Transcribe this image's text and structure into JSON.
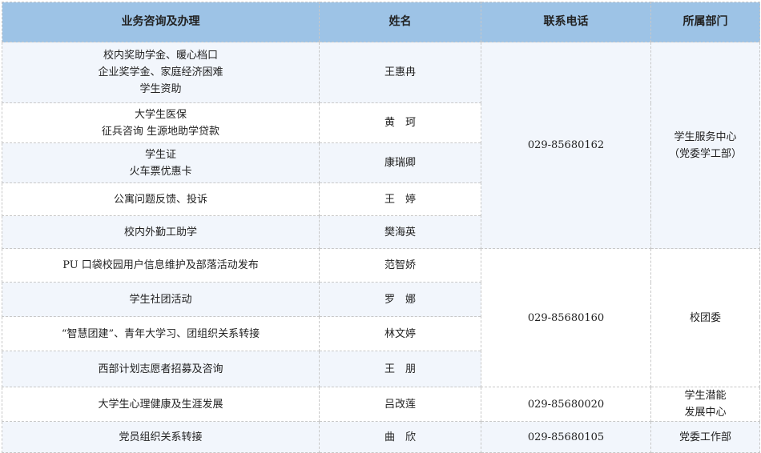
{
  "headers": [
    "业务咨询及办理",
    "姓名",
    "联系电话",
    "所属部门"
  ],
  "rows": [
    {
      "business": [
        "校内奖助学金、暖心档口",
        "企业奖学金、家庭经济困难",
        "学生资助"
      ],
      "name": "王惠冉"
    },
    {
      "business": [
        "大学生医保",
        "征兵咨询 生源地助学贷款"
      ],
      "name": "黄　珂"
    },
    {
      "business": [
        "学生证",
        "火车票优惠卡"
      ],
      "name": "康瑞卿"
    },
    {
      "business": [
        "公寓问题反馈、投诉"
      ],
      "name": "王　婷"
    },
    {
      "business": [
        "校内外勤工助学"
      ],
      "name": "樊海英"
    },
    {
      "business": [
        "PU 口袋校园用户信息维护及部落活动发布"
      ],
      "name": "范智娇"
    },
    {
      "business": [
        "学生社团活动"
      ],
      "name": "罗　娜"
    },
    {
      "business": [
        "“智慧团建”、青年大学习、团组织关系转接"
      ],
      "name": "林文婷"
    },
    {
      "business": [
        "西部计划志愿者招募及咨询"
      ],
      "name": "王　朋"
    },
    {
      "business": [
        "大学生心理健康及生涯发展"
      ],
      "name": "吕改莲"
    },
    {
      "business": [
        "党员组织关系转接"
      ],
      "name": "曲　欣"
    }
  ],
  "groups": [
    {
      "phone": "029-85680162",
      "department": [
        "学生服务中心",
        "（党委学工部）"
      ]
    },
    {
      "phone": "029-85680160",
      "department": [
        "校团委"
      ]
    },
    {
      "phone": "029-85680020",
      "department": [
        "学生潜能",
        "发展中心"
      ]
    },
    {
      "phone": "029-85680105",
      "department": [
        "党委工作部"
      ]
    }
  ]
}
